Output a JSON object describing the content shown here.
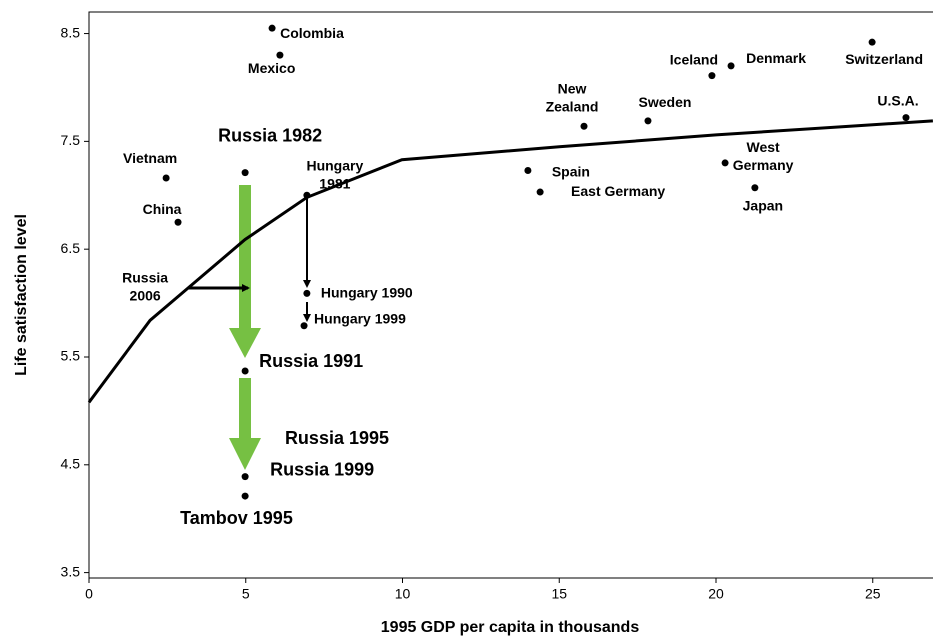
{
  "chart_data": {
    "type": "scatter",
    "xlabel": "1995 GDP per capita in thousands",
    "ylabel": "Life satisfaction level",
    "xlim": [
      0,
      27
    ],
    "ylim": [
      3.45,
      8.7
    ],
    "xticks": [
      0,
      5,
      10,
      15,
      20,
      25
    ],
    "yticks": [
      3.5,
      4.5,
      5.5,
      6.5,
      7.5,
      8.5
    ],
    "color": "#000000",
    "points": [
      {
        "label": [
          "Colombia"
        ],
        "x": 5.84,
        "y": 8.55
      },
      {
        "label": [
          "Mexico"
        ],
        "x": 6.09,
        "y": 8.3
      },
      {
        "label": [
          "Vietnam"
        ],
        "x": 2.46,
        "y": 7.16
      },
      {
        "label": [
          "China"
        ],
        "x": 2.84,
        "y": 6.75
      },
      {
        "label": [
          "Russia 1982"
        ],
        "x": 4.98,
        "y": 7.21
      },
      {
        "label": [
          "Hungary",
          "1981"
        ],
        "x": 6.95,
        "y": 7.0
      },
      {
        "label": [
          "Hungary 1990"
        ],
        "x": 6.95,
        "y": 6.09
      },
      {
        "label": [
          "Hungary  1999"
        ],
        "x": 6.86,
        "y": 5.79
      },
      {
        "label": [
          "Russia 1991"
        ],
        "x": 4.98,
        "y": 5.37
      },
      {
        "label": [
          "Russia 1999"
        ],
        "x": 4.98,
        "y": 4.39
      },
      {
        "label": [
          "Tambov 1995"
        ],
        "x": 4.98,
        "y": 4.21
      },
      {
        "label": [
          "New",
          "Zealand"
        ],
        "x": 15.79,
        "y": 7.64
      },
      {
        "label": [
          "Sweden"
        ],
        "x": 17.83,
        "y": 7.69
      },
      {
        "label": [
          "Iceland"
        ],
        "x": 19.87,
        "y": 8.11
      },
      {
        "label": [
          "Denmark"
        ],
        "x": 20.48,
        "y": 8.2
      },
      {
        "label": [
          "Switzerland"
        ],
        "x": 24.98,
        "y": 8.42
      },
      {
        "label": [
          "U.S.A."
        ],
        "x": 26.06,
        "y": 7.72
      },
      {
        "label": [
          "Spain"
        ],
        "x": 14.0,
        "y": 7.23
      },
      {
        "label": [
          "East Germany"
        ],
        "x": 14.39,
        "y": 7.03
      },
      {
        "label": [
          "West",
          "Germany"
        ],
        "x": 20.29,
        "y": 7.3
      },
      {
        "label": [
          "Japan"
        ],
        "x": 21.24,
        "y": 7.07
      }
    ],
    "annotations": [
      {
        "text": [
          "Russia",
          "2006"
        ],
        "x": 1.79,
        "y": 6.23
      },
      {
        "text": [
          "Russia 1995"
        ],
        "x": 7.91,
        "y": 4.74
      }
    ],
    "curve": {
      "x": [
        0,
        1.95,
        3.16,
        4.98,
        6.95,
        9.98,
        15,
        20,
        26.92
      ],
      "y": [
        5.08,
        5.84,
        6.14,
        6.59,
        6.98,
        7.33,
        7.45,
        7.56,
        7.69
      ]
    }
  }
}
